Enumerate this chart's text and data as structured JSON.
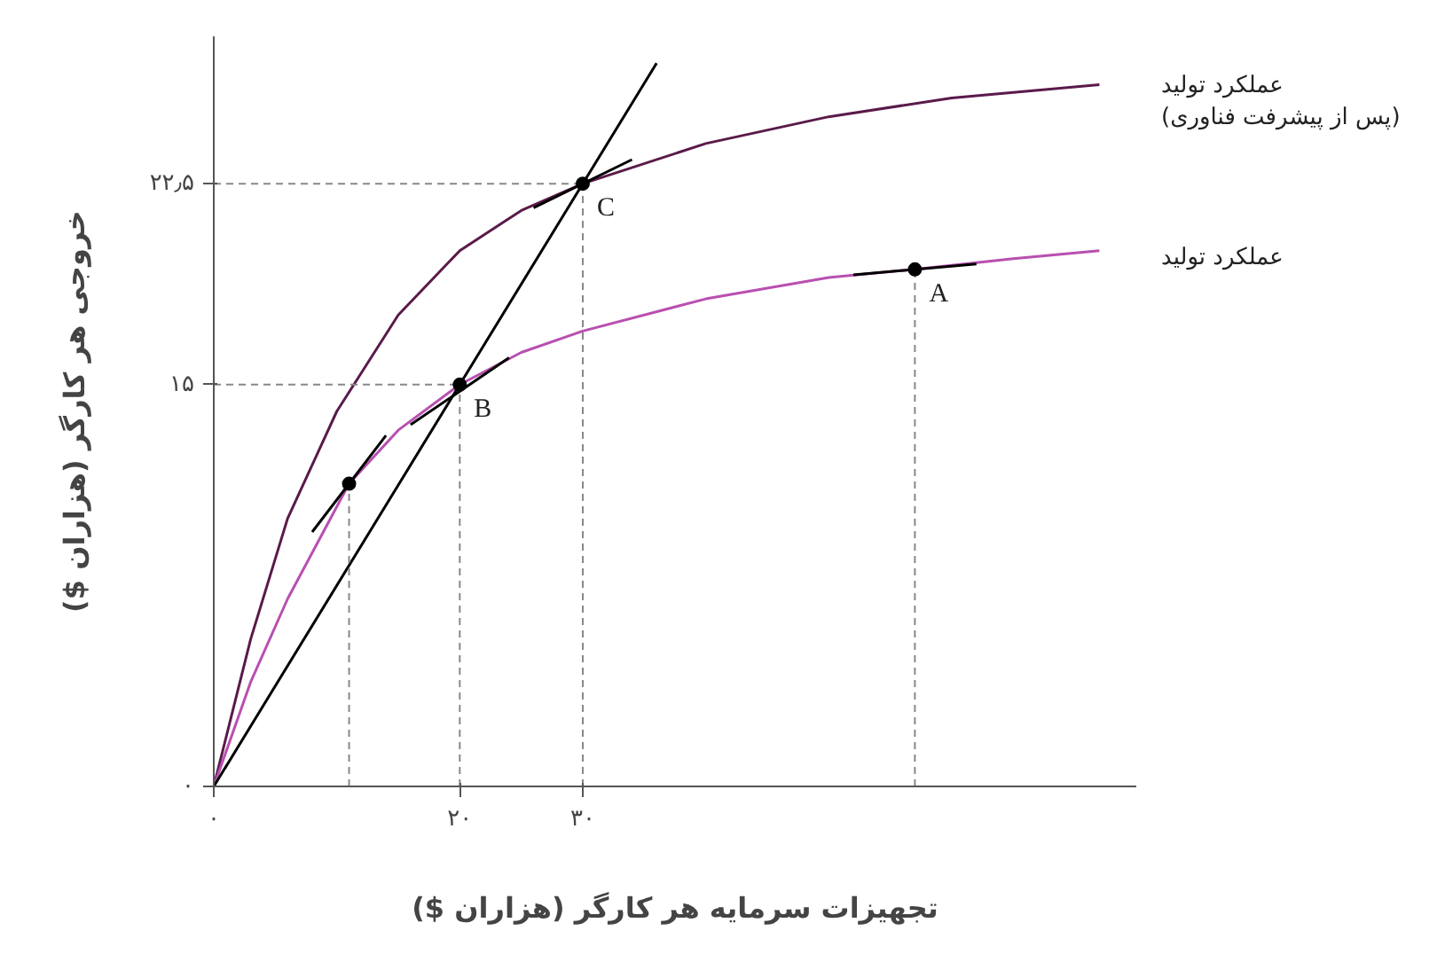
{
  "chart_data": {
    "type": "line",
    "xlabel": "تجهیزات سرمایه هر کارگر (هزاران $)",
    "ylabel": "خروجی هر کارگر (هزاران $)",
    "xlim": [
      0,
      75
    ],
    "ylim": [
      0,
      28
    ],
    "xticks": [
      {
        "value": 0,
        "label": "۰"
      },
      {
        "value": 20,
        "label": "۲۰"
      },
      {
        "value": 30,
        "label": "۳۰"
      }
    ],
    "yticks": [
      {
        "value": 0,
        "label": "۰"
      },
      {
        "value": 15,
        "label": "۱۵"
      },
      {
        "value": 22.5,
        "label": "۲۲٫۵"
      }
    ],
    "grid": false,
    "series": [
      {
        "name": "عملکرد تولید\n(پس از پیشرفت فناوری)",
        "color": "#5a1a4a",
        "x": [
          0,
          3,
          6,
          10,
          15,
          20,
          25,
          30,
          40,
          50,
          60,
          72
        ],
        "values": [
          0,
          5.5,
          10,
          14,
          17.6,
          20,
          21.5,
          22.5,
          24,
          25,
          25.7,
          26.2
        ]
      },
      {
        "name": "عملکرد تولید",
        "color": "#b94fb0",
        "x": [
          0,
          3,
          6,
          11,
          15,
          20,
          25,
          30,
          40,
          50,
          57,
          65,
          72
        ],
        "values": [
          0,
          3.9,
          7,
          11.3,
          13.3,
          15,
          16.2,
          17,
          18.2,
          19,
          19.3,
          19.7,
          20
        ]
      },
      {
        "type": "line",
        "color": "#000000",
        "x": [
          0,
          36
        ],
        "values": [
          0,
          27
        ]
      },
      {
        "type": "line",
        "color": "#000000",
        "x": [
          8,
          14
        ],
        "values": [
          9.5,
          13.1
        ]
      },
      {
        "type": "line",
        "color": "#000000",
        "x": [
          16,
          24
        ],
        "values": [
          13.5,
          16
        ]
      },
      {
        "type": "line",
        "color": "#000000",
        "x": [
          52,
          62
        ],
        "values": [
          19.1,
          19.5
        ]
      },
      {
        "type": "line",
        "color": "#000000",
        "x": [
          26,
          34
        ],
        "values": [
          21.6,
          23.4
        ]
      },
      {
        "type": "line",
        "line_style": "dashed",
        "color": "#888888",
        "x": [
          11,
          11
        ],
        "values": [
          0,
          11.3
        ]
      },
      {
        "type": "line",
        "line_style": "dashed",
        "color": "#888888",
        "x": [
          20,
          20
        ],
        "values": [
          0,
          15
        ]
      },
      {
        "type": "line",
        "line_style": "dashed",
        "color": "#888888",
        "x": [
          30,
          30
        ],
        "values": [
          0,
          22.5
        ]
      },
      {
        "type": "line",
        "line_style": "dashed",
        "color": "#888888",
        "x": [
          57,
          57
        ],
        "values": [
          0,
          19.3
        ]
      },
      {
        "type": "line",
        "line_style": "dashed",
        "color": "#888888",
        "x": [
          0,
          20
        ],
        "values": [
          15,
          15
        ]
      },
      {
        "type": "line",
        "line_style": "dashed",
        "color": "#888888",
        "x": [
          0,
          30
        ],
        "values": [
          22.5,
          22.5
        ]
      },
      {
        "type": "scatter",
        "marker": "circle",
        "color": "#000000",
        "x": [
          11,
          20,
          30,
          57
        ],
        "values": [
          11.3,
          15,
          22.5,
          19.3
        ]
      }
    ],
    "annotations": [
      {
        "text": "A",
        "x": 57,
        "y": 19.3
      },
      {
        "text": "B",
        "x": 20,
        "y": 15
      },
      {
        "text": "C",
        "x": 30,
        "y": 22.5
      }
    ]
  }
}
